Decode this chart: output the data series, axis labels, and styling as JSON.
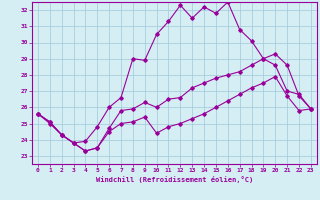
{
  "xlabel": "Windchill (Refroidissement éolien,°C)",
  "x_ticks": [
    0,
    1,
    2,
    3,
    4,
    5,
    6,
    7,
    8,
    9,
    10,
    11,
    12,
    13,
    14,
    15,
    16,
    17,
    18,
    19,
    20,
    21,
    22,
    23
  ],
  "ylim": [
    22.5,
    32.5
  ],
  "xlim": [
    -0.5,
    23.5
  ],
  "yticks": [
    23,
    24,
    25,
    26,
    27,
    28,
    29,
    30,
    31,
    32
  ],
  "line_color": "#990099",
  "bg_color": "#d4eef4",
  "line1_x": [
    0,
    1,
    2,
    3,
    4,
    5,
    6,
    7,
    8,
    9,
    10,
    11,
    12,
    13,
    14,
    15,
    16,
    17,
    18,
    19,
    20,
    21,
    22,
    23
  ],
  "line1_y": [
    25.6,
    25.1,
    24.3,
    23.8,
    23.3,
    23.5,
    24.7,
    25.8,
    25.9,
    26.3,
    26.0,
    26.5,
    26.6,
    27.2,
    27.5,
    27.8,
    28.0,
    28.2,
    28.6,
    29.0,
    29.3,
    28.6,
    26.7,
    25.9
  ],
  "line2_x": [
    0,
    1,
    2,
    3,
    4,
    5,
    6,
    7,
    8,
    9,
    10,
    11,
    12,
    13,
    14,
    15,
    16,
    17,
    18,
    19,
    20,
    21,
    22,
    23
  ],
  "line2_y": [
    25.6,
    25.1,
    24.3,
    23.8,
    23.9,
    24.8,
    26.0,
    26.6,
    29.0,
    28.9,
    30.5,
    31.3,
    32.3,
    31.5,
    32.2,
    31.8,
    32.5,
    30.8,
    30.1,
    29.0,
    28.6,
    27.0,
    26.8,
    25.9
  ],
  "line3_x": [
    0,
    1,
    2,
    3,
    4,
    5,
    6,
    7,
    8,
    9,
    10,
    11,
    12,
    13,
    14,
    15,
    16,
    17,
    18,
    19,
    20,
    21,
    22,
    23
  ],
  "line3_y": [
    25.6,
    25.0,
    24.3,
    23.8,
    23.3,
    23.5,
    24.5,
    25.0,
    25.1,
    25.4,
    24.4,
    24.8,
    25.0,
    25.3,
    25.6,
    26.0,
    26.4,
    26.8,
    27.2,
    27.5,
    27.9,
    26.7,
    25.8,
    25.9
  ]
}
